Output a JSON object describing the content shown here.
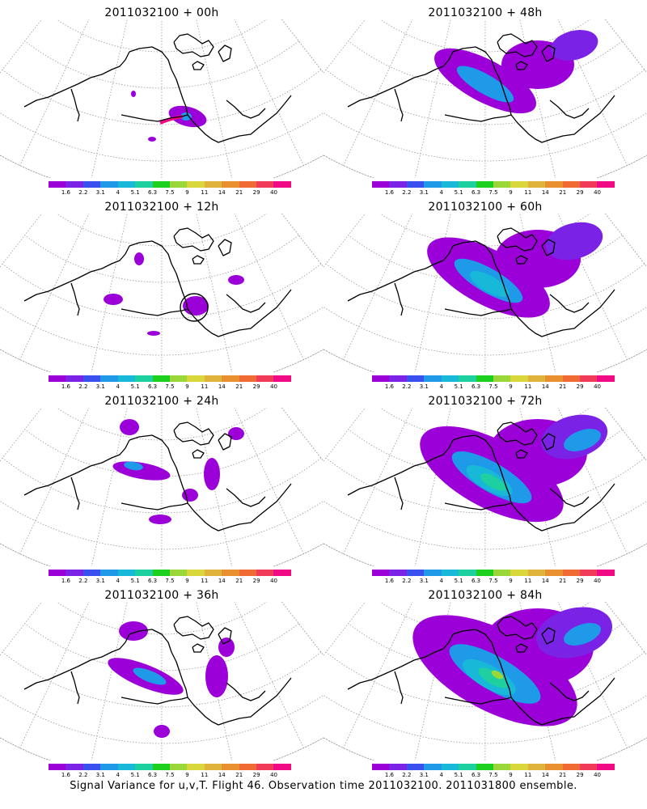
{
  "figure": {
    "caption": "Signal Variance for u,v,T. Flight 46. Observation time 2011032100. 2011031800 ensemble."
  },
  "colorbar": {
    "colors": [
      "#9b00d8",
      "#7a22e6",
      "#3a4ff0",
      "#1e9ae8",
      "#18b8d8",
      "#1ecfa0",
      "#1ed01e",
      "#9ad83a",
      "#d8d83a",
      "#e0b43a",
      "#e89030",
      "#f06a34",
      "#f03a5a",
      "#f00a86"
    ],
    "tick_labels": [
      "1.6",
      "2.2",
      "3.1",
      "4",
      "5.1",
      "6.3",
      "7.5",
      "9",
      "11",
      "14",
      "21",
      "29",
      "40"
    ]
  },
  "panels": [
    {
      "title": "2011032100 + 00h",
      "lead_hours": 0,
      "intensity": 0
    },
    {
      "title": "2011032100 + 48h",
      "lead_hours": 48,
      "intensity": 4
    },
    {
      "title": "2011032100 + 12h",
      "lead_hours": 12,
      "intensity": 1
    },
    {
      "title": "2011032100 + 60h",
      "lead_hours": 60,
      "intensity": 5
    },
    {
      "title": "2011032100 + 24h",
      "lead_hours": 24,
      "intensity": 2
    },
    {
      "title": "2011032100 + 72h",
      "lead_hours": 72,
      "intensity": 6
    },
    {
      "title": "2011032100 + 36h",
      "lead_hours": 36,
      "intensity": 3
    },
    {
      "title": "2011032100 + 84h",
      "lead_hours": 84,
      "intensity": 7
    }
  ]
}
